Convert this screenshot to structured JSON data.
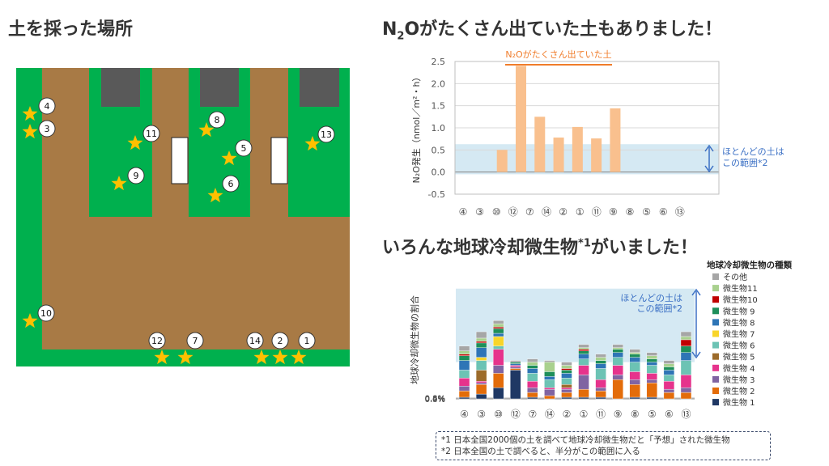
{
  "titles": {
    "map": "土を採った場所",
    "n2o_pre": "N",
    "n2o_sub": "2",
    "n2o_post": "Oがたくさん出ていた土もありました！",
    "community_pre": "いろんな地球冷却微生物",
    "community_sup": "*1",
    "community_post": "がいました！"
  },
  "map": {
    "colors": {
      "soil": "#a87a45",
      "grass": "#00b04e",
      "building": "#595959",
      "star": "#ffc000"
    },
    "sites": [
      "1",
      "2",
      "3",
      "4",
      "5",
      "6",
      "7",
      "8",
      "9",
      "10",
      "11",
      "12",
      "13",
      "14"
    ]
  },
  "notes": {
    "note1": "*1 日本全国2000個の土を調べて地球冷却微生物だと「予想」された微生物",
    "note2": "*2 日本全国の土で調べると、半分がこの範囲に入る"
  },
  "chart_data": [
    {
      "type": "bar",
      "ylabel": "N₂O発生（nmol／m²・h）",
      "ylim": [
        -0.5,
        2.5
      ],
      "yticks": [
        "2.5",
        "2.0",
        "1.5",
        "1.0",
        "0.5",
        "0.0",
        "-0.5"
      ],
      "categories": [
        "④",
        "③",
        "⑩",
        "⑫",
        "⑦",
        "⑭",
        "②",
        "①",
        "⑪",
        "⑨",
        "⑧",
        "⑤",
        "⑥",
        "⑬"
      ],
      "values": [
        0,
        0,
        0.5,
        2.4,
        1.25,
        0.78,
        1.02,
        0.76,
        1.44,
        0,
        0,
        0,
        0,
        0
      ],
      "band": [
        -0.05,
        0.63
      ],
      "bracket_label": "N₂Oがたくさん出ていた土",
      "band_note": "ほとんどの土は\nこの範囲*2",
      "colors": {
        "bar": "#f9c08e",
        "band": "#d5e9f3",
        "accent": "#f07c2a",
        "band_text": "#3a6fc4"
      }
    },
    {
      "type": "bar",
      "ylabel": "地球冷却微生物の割合",
      "ylim": [
        0,
        0.8
      ],
      "yticks": [
        "0.8%",
        "0.6%",
        "0.4%",
        "0.2%",
        "0.0%"
      ],
      "categories": [
        "④",
        "③",
        "⑩",
        "⑫",
        "⑦",
        "⑭",
        "②",
        "①",
        "⑪",
        "⑨",
        "⑧",
        "⑤",
        "⑥",
        "⑬"
      ],
      "legend_title": "地球冷却微生物の種類",
      "legend_position": "right",
      "band": [
        0.23,
        0.69
      ],
      "band_note": "ほとんどの土は\nこの範囲*2",
      "series": [
        {
          "name": "微生物 1",
          "color": "#1f3864",
          "values": [
            0.01,
            0.03,
            0.07,
            0.18,
            0.01,
            0.0,
            0.01,
            0.01,
            0.01,
            0.0,
            0.01,
            0.01,
            0.0,
            0.0
          ]
        },
        {
          "name": "微生物 2",
          "color": "#e36c0a",
          "values": [
            0.04,
            0.06,
            0.09,
            0.01,
            0.03,
            0.02,
            0.03,
            0.05,
            0.04,
            0.12,
            0.08,
            0.09,
            0.04,
            0.04
          ]
        },
        {
          "name": "微生物 3",
          "color": "#8064a2",
          "values": [
            0.03,
            0.01,
            0.05,
            0.01,
            0.03,
            0.04,
            0.02,
            0.09,
            0.02,
            0.03,
            0.03,
            0.02,
            0.02,
            0.03
          ]
        },
        {
          "name": "微生物 4",
          "color": "#e6338c",
          "values": [
            0.05,
            0.01,
            0.1,
            0.01,
            0.04,
            0.01,
            0.01,
            0.06,
            0.05,
            0.06,
            0.05,
            0.04,
            0.05,
            0.08
          ]
        },
        {
          "name": "微生物 5",
          "color": "#9c6b2a",
          "values": [
            0.0,
            0.07,
            0.0,
            0.0,
            0.0,
            0.0,
            0.02,
            0.0,
            0.0,
            0.0,
            0.0,
            0.0,
            0.0,
            0.0
          ]
        },
        {
          "name": "微生物 6",
          "color": "#6cc3b4",
          "values": [
            0.05,
            0.06,
            0.02,
            0.0,
            0.05,
            0.05,
            0.04,
            0.04,
            0.07,
            0.05,
            0.06,
            0.05,
            0.04,
            0.09
          ]
        },
        {
          "name": "微生物 7",
          "color": "#f8d52a",
          "values": [
            0.0,
            0.02,
            0.06,
            0.0,
            0.0,
            0.0,
            0.0,
            0.0,
            0.0,
            0.0,
            0.0,
            0.0,
            0.0,
            0.0
          ]
        },
        {
          "name": "微生物 8",
          "color": "#2e75b6",
          "values": [
            0.06,
            0.06,
            0.02,
            0.01,
            0.03,
            0.02,
            0.03,
            0.03,
            0.03,
            0.03,
            0.03,
            0.02,
            0.03,
            0.05
          ]
        },
        {
          "name": "微生物 9",
          "color": "#1e8f5a",
          "values": [
            0.03,
            0.03,
            0.03,
            0.01,
            0.02,
            0.03,
            0.02,
            0.02,
            0.02,
            0.02,
            0.02,
            0.02,
            0.02,
            0.04
          ]
        },
        {
          "name": "微生物10",
          "color": "#c00000",
          "values": [
            0.01,
            0.01,
            0.01,
            0.0,
            0.0,
            0.0,
            0.01,
            0.01,
            0.0,
            0.0,
            0.0,
            0.0,
            0.0,
            0.04
          ]
        },
        {
          "name": "微生物11",
          "color": "#a9d18e",
          "values": [
            0.02,
            0.02,
            0.02,
            0.0,
            0.02,
            0.06,
            0.02,
            0.01,
            0.02,
            0.01,
            0.01,
            0.02,
            0.02,
            0.02
          ]
        },
        {
          "name": "その他",
          "color": "#a6a6a6",
          "values": [
            0.03,
            0.04,
            0.02,
            0.01,
            0.02,
            0.01,
            0.02,
            0.02,
            0.02,
            0.02,
            0.02,
            0.02,
            0.02,
            0.03
          ]
        }
      ]
    }
  ]
}
